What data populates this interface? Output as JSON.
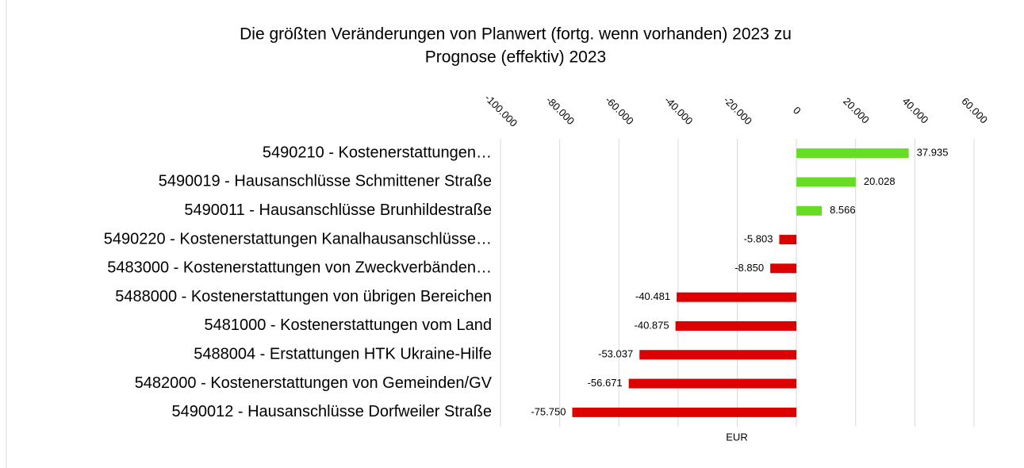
{
  "chart_data": {
    "type": "bar",
    "orientation": "horizontal",
    "title": [
      "Die größten Veränderungen von  Planwert (fortg. wenn vorhanden) 2023  zu",
      "Prognose (effektiv) 2023"
    ],
    "xlabel": "EUR",
    "categories": [
      "5490210 - Kostenerstattungen…",
      "5490019 - Hausanschlüsse Schmittener Straße",
      "5490011 - Hausanschlüsse Brunhildestraße",
      "5490220 - Kostenerstattungen Kanalhausanschlüsse…",
      "5483000 - Kostenerstattungen von Zweckverbänden…",
      "5488000 - Kostenerstattungen von übrigen Bereichen",
      "5481000 - Kostenerstattungen vom Land",
      "5488004 - Erstattungen HTK Ukraine-Hilfe",
      "5482000 - Kostenerstattungen von Gemeinden/GV",
      "5490012 - Hausanschlüsse Dorfweiler Straße"
    ],
    "values": [
      37935,
      20028,
      8566,
      -5803,
      -8850,
      -40481,
      -40875,
      -53037,
      -56671,
      -75750
    ],
    "value_labels": [
      "37.935",
      "20.028",
      "8.566",
      "-5.803",
      "-8.850",
      "-40.481",
      "-40.875",
      "-53.037",
      "-56.671",
      "-75.750"
    ],
    "colors": [
      "#66dd22",
      "#66dd22",
      "#66dd22",
      "#dd0000",
      "#dd0000",
      "#dd0000",
      "#dd0000",
      "#dd0000",
      "#dd0000",
      "#dd0000"
    ],
    "xlim": [
      -100000,
      60000
    ],
    "xticks": [
      {
        "value": -100000,
        "label": "-100.000"
      },
      {
        "value": -80000,
        "label": "-80.000"
      },
      {
        "value": -60000,
        "label": "-60.000"
      },
      {
        "value": -40000,
        "label": "-40.000"
      },
      {
        "value": -20000,
        "label": "-20.000"
      },
      0,
      {
        "value": 20000,
        "label": "20.000"
      },
      {
        "value": 40000,
        "label": "40.000"
      },
      {
        "value": 60000,
        "label": "60.000"
      }
    ],
    "grid": true
  }
}
